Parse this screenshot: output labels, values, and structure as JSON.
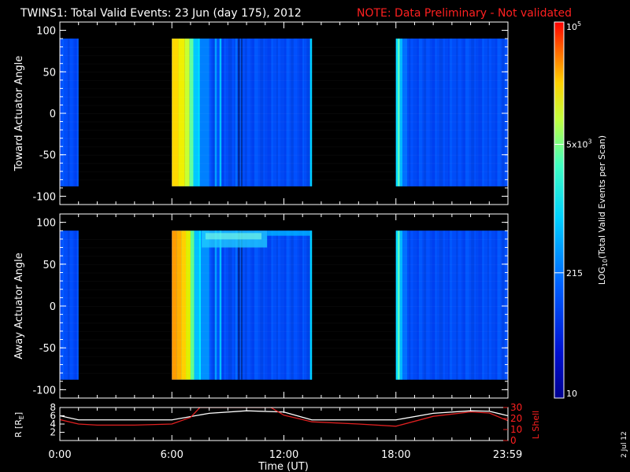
{
  "header": {
    "title": "TWINS1: Total Valid Events: 23 Jun (day 175), 2012",
    "note": "NOTE: Data Preliminary - Not validated"
  },
  "side_date": "2 Jul 12",
  "colors": {
    "background": "#000000",
    "note": "#ff2020",
    "r_line": "#ffffff",
    "lshell_line": "#e02020"
  },
  "chart_data": [
    {
      "type": "heatmap",
      "name": "toward",
      "ylabel": "Toward Actuator Angle",
      "ylim": [
        -110,
        110
      ],
      "yticks": [
        100,
        50,
        0,
        -50,
        -100
      ],
      "xlim_hours": [
        0,
        24
      ],
      "data_coverage_angle": [
        -88,
        90
      ],
      "gap_after_hours": [
        [
          1.0,
          6.0
        ],
        [
          13.5,
          18.0
        ]
      ],
      "color_scale": "log"
    },
    {
      "type": "heatmap",
      "name": "away",
      "ylabel": "Away Actuator Angle",
      "ylim": [
        -110,
        110
      ],
      "yticks": [
        100,
        50,
        0,
        -50,
        -100
      ],
      "xlim_hours": [
        0,
        24
      ],
      "data_coverage_angle": [
        -88,
        90
      ],
      "gap_after_hours": [
        [
          1.0,
          6.0
        ],
        [
          13.5,
          18.0
        ]
      ],
      "color_scale": "log"
    },
    {
      "type": "line",
      "name": "orbit",
      "ylabel_left": "R [R",
      "ylabel_left_sub": "E",
      "ylabel_left_end": "]",
      "ylabel_right": "L Shell",
      "yticks_left": [
        "2",
        "4",
        "6",
        "8"
      ],
      "yticks_right": [
        "0",
        "10",
        "20",
        "30"
      ],
      "ylim_left": [
        0,
        8
      ],
      "ylim_right": [
        0,
        30
      ],
      "xticks": [
        "0:00",
        "6:00",
        "12:00",
        "18:00",
        "23:59"
      ],
      "xlabel": "Time (UT)",
      "series": [
        {
          "axis": "left",
          "x": [
            0,
            1,
            2,
            4,
            6,
            8,
            10,
            12,
            13.5,
            16,
            18,
            20,
            22,
            23,
            24
          ],
          "y": [
            6.0,
            5.0,
            5.0,
            5.0,
            5.0,
            6.6,
            7.2,
            6.9,
            5.0,
            5.0,
            5.0,
            6.6,
            7.2,
            7.1,
            6.0
          ]
        },
        {
          "axis": "right",
          "x": [
            0,
            1,
            2,
            4,
            6,
            7,
            7.5,
            11.3,
            12,
            13.5,
            16,
            18,
            20,
            22,
            23,
            24
          ],
          "y": [
            19,
            15,
            14,
            14,
            15,
            21,
            30,
            30,
            23,
            17,
            15,
            13,
            22,
            26,
            25,
            18
          ]
        }
      ]
    }
  ],
  "colorbar": {
    "label": "LOG10(Total Valid Events per Scan)",
    "label_main": "LOG",
    "label_sub": "10",
    "label_rest": "(Total Valid Events per Scan)",
    "ticks": [
      {
        "text": "10",
        "value": 10
      },
      {
        "text": "215",
        "value": 215
      },
      {
        "text": "5x10",
        "sup": "3",
        "value": 5000
      },
      {
        "text": "10",
        "sup": "5",
        "value": 100000
      }
    ],
    "range": [
      10,
      100000
    ]
  }
}
